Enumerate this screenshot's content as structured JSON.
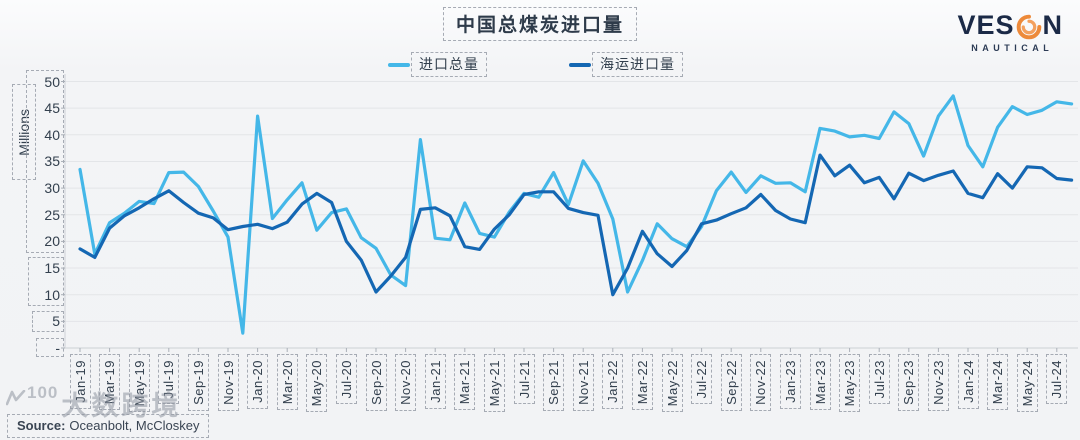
{
  "title": "中国总煤炭进口量",
  "legend": {
    "items": [
      {
        "label": "进口总量"
      },
      {
        "label": "海运进口量"
      }
    ]
  },
  "logo": {
    "ves": "VES",
    "n": "N",
    "sub": "NAUTICAL",
    "navy": "#1b2a47",
    "orange": "#ed8a3a"
  },
  "y_axis": {
    "title": "Millions",
    "tick_labels": [
      "50",
      "45",
      "40",
      "35",
      "30",
      "25",
      "20",
      "15",
      "10",
      "5",
      "-"
    ]
  },
  "source": {
    "label": "Source:",
    "names": "Oceanbolt, McCloskey"
  },
  "watermark": {
    "number": "100",
    "text": "大数跨境"
  },
  "colors": {
    "background": "#f2f3f5",
    "gridline": "#e3e5e8",
    "axis": "#d4d7db",
    "text": "#33404e",
    "dashed_box": "#a6abb4",
    "series_total": "#44b7e8",
    "series_seaborne": "#1467b3"
  },
  "chart_data": {
    "type": "line",
    "title": "中国总煤炭进口量",
    "ylabel": "Millions",
    "ylim": [
      0,
      50
    ],
    "ytick_step": 5,
    "x_tick_every": 2,
    "grid": "horizontal",
    "legend_position": "top",
    "x": [
      "Jan-19",
      "Feb-19",
      "Mar-19",
      "Apr-19",
      "May-19",
      "Jun-19",
      "Jul-19",
      "Aug-19",
      "Sep-19",
      "Oct-19",
      "Nov-19",
      "Dec-19",
      "Jan-20",
      "Feb-20",
      "Mar-20",
      "Apr-20",
      "May-20",
      "Jun-20",
      "Jul-20",
      "Aug-20",
      "Sep-20",
      "Oct-20",
      "Nov-20",
      "Dec-20",
      "Jan-21",
      "Feb-21",
      "Mar-21",
      "Apr-21",
      "May-21",
      "Jun-21",
      "Jul-21",
      "Aug-21",
      "Sep-21",
      "Oct-21",
      "Nov-21",
      "Dec-21",
      "Jan-22",
      "Feb-22",
      "Mar-22",
      "Apr-22",
      "May-22",
      "Jun-22",
      "Jul-22",
      "Aug-22",
      "Sep-22",
      "Oct-22",
      "Nov-22",
      "Dec-22",
      "Jan-23",
      "Feb-23",
      "Mar-23",
      "Apr-23",
      "May-23",
      "Jun-23",
      "Jul-23",
      "Aug-23",
      "Sep-23",
      "Oct-23",
      "Nov-23",
      "Dec-23",
      "Jan-24",
      "Feb-24",
      "Mar-24",
      "Apr-24",
      "May-24",
      "Jun-24",
      "Jul-24",
      "Aug-24"
    ],
    "series": [
      {
        "name": "进口总量",
        "color": "#44b7e8",
        "values": [
          33.5,
          17.6,
          23.5,
          25.3,
          27.5,
          27.1,
          32.9,
          33.0,
          30.3,
          25.7,
          20.8,
          2.8,
          43.5,
          24.3,
          27.8,
          31.0,
          22.1,
          25.4,
          26.1,
          20.7,
          18.7,
          13.7,
          11.7,
          39.1,
          20.6,
          20.3,
          27.2,
          21.5,
          20.8,
          25.5,
          29.0,
          28.3,
          32.9,
          26.9,
          35.1,
          30.9,
          24.2,
          10.5,
          16.4,
          23.3,
          20.5,
          19.0,
          22.8,
          29.5,
          33.0,
          29.2,
          32.3,
          30.9,
          31.0,
          29.3,
          41.2,
          40.7,
          39.6,
          39.9,
          39.3,
          44.3,
          42.1,
          36.0,
          43.5,
          47.3,
          38.0,
          34.0,
          41.4,
          45.3,
          43.8,
          44.6,
          46.2,
          45.8
        ]
      },
      {
        "name": "海运进口量",
        "color": "#1467b3",
        "values": [
          18.6,
          17.0,
          22.5,
          24.8,
          26.3,
          28.0,
          29.5,
          27.3,
          25.3,
          24.4,
          22.2,
          22.8,
          23.2,
          22.4,
          23.6,
          27.0,
          29.0,
          27.3,
          20.0,
          16.5,
          10.5,
          13.5,
          17.0,
          26.0,
          26.3,
          24.8,
          19.0,
          18.5,
          22.3,
          25.0,
          28.8,
          29.3,
          29.3,
          26.2,
          25.4,
          24.9,
          10.0,
          15.0,
          21.9,
          17.7,
          15.3,
          18.3,
          23.3,
          24.0,
          25.2,
          26.3,
          28.8,
          25.8,
          24.2,
          23.5,
          36.2,
          32.3,
          34.3,
          31.0,
          32.0,
          28.0,
          32.8,
          31.4,
          32.4,
          33.2,
          29.0,
          28.2,
          32.7,
          30.0,
          34.0,
          33.8,
          31.8,
          31.5
        ]
      }
    ]
  }
}
